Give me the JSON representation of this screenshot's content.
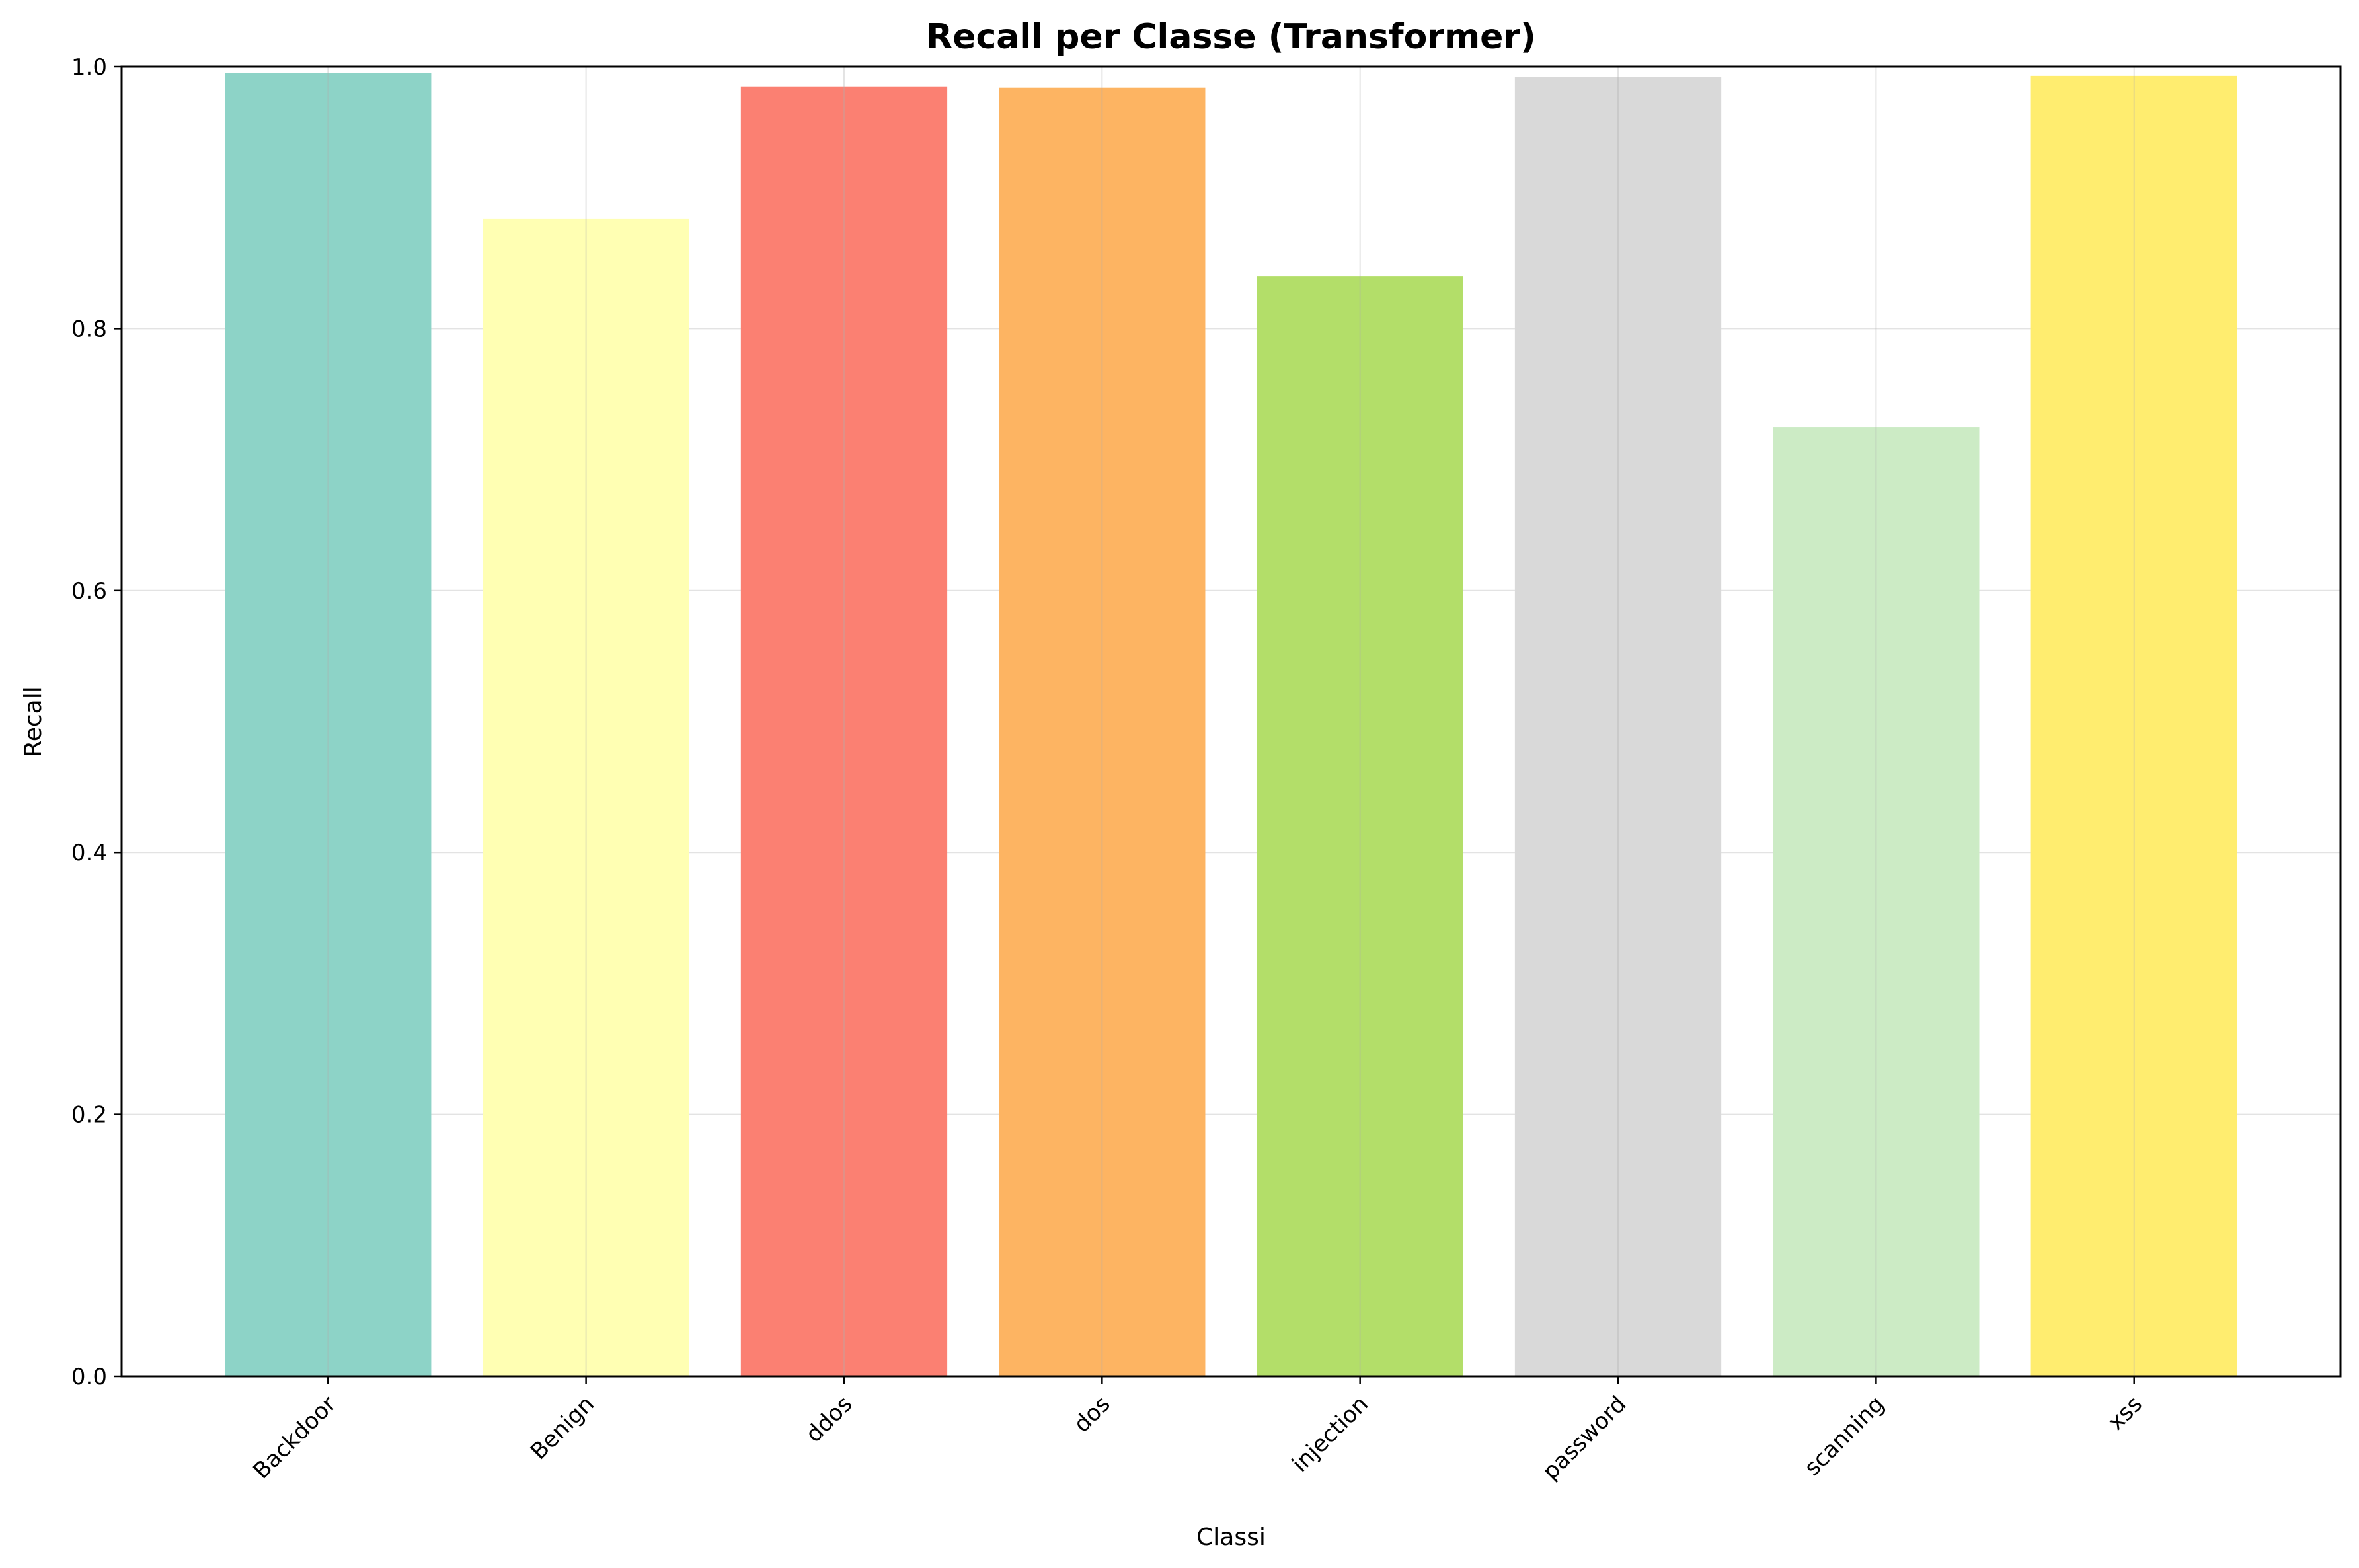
{
  "chart_data": {
    "type": "bar",
    "title": "Recall per Classe (Transformer)",
    "xlabel": "Classi",
    "ylabel": "Recall",
    "ylim": [
      0,
      1.0
    ],
    "yticks": [
      "0.0",
      "0.2",
      "0.4",
      "0.6",
      "0.8",
      "1.0"
    ],
    "grid": true,
    "categories": [
      "Backdoor",
      "Benign",
      "ddos",
      "dos",
      "injection",
      "password",
      "scanning",
      "xss"
    ],
    "values": [
      0.995,
      0.884,
      0.985,
      0.984,
      0.84,
      0.992,
      0.725,
      0.993
    ],
    "colors": [
      "#8dd3c7",
      "#ffffb3",
      "#fb8072",
      "#fdb462",
      "#b3de69",
      "#d9d9d9",
      "#ccebc5",
      "#ffed6f"
    ]
  }
}
